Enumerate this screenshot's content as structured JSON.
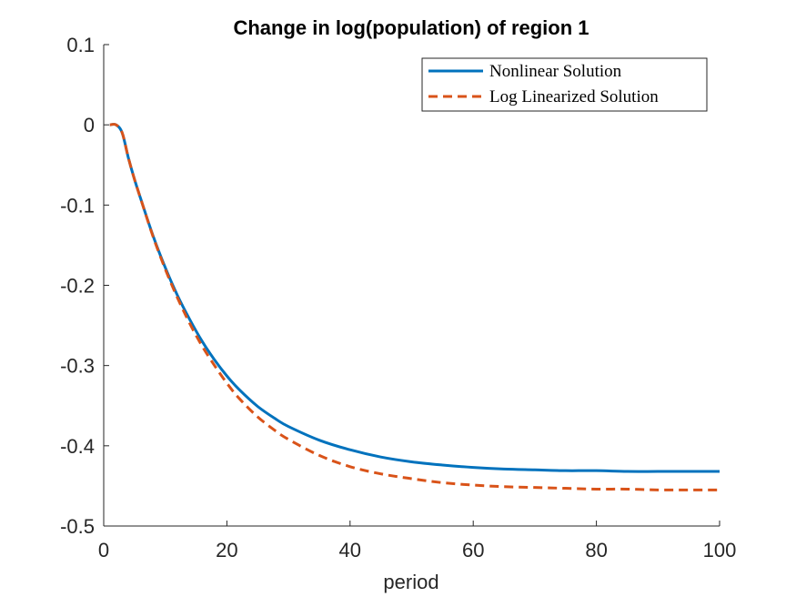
{
  "chart_data": {
    "type": "line",
    "title": "Change in log(population) of region 1",
    "xlabel": "period",
    "ylabel": "",
    "xlim": [
      0,
      100
    ],
    "ylim": [
      -0.5,
      0.1
    ],
    "xticks": [
      0,
      20,
      40,
      60,
      80,
      100
    ],
    "xtick_labels": [
      "0",
      "20",
      "40",
      "60",
      "80",
      "100"
    ],
    "yticks": [
      0.1,
      0,
      -0.1,
      -0.2,
      -0.3,
      -0.4,
      -0.5
    ],
    "ytick_labels": [
      "0.1",
      "0",
      "-0.1",
      "-0.2",
      "-0.3",
      "-0.4",
      "-0.5"
    ],
    "grid": false,
    "legend_position": "top-right",
    "series": [
      {
        "name": "Nonlinear Solution",
        "color": "#0072BD",
        "style": "solid",
        "x": [
          1,
          2,
          3,
          4,
          5,
          6,
          8,
          10,
          12,
          14,
          16,
          18,
          20,
          22,
          25,
          28,
          30,
          35,
          40,
          45,
          50,
          55,
          60,
          65,
          70,
          75,
          80,
          85,
          90,
          95,
          100
        ],
        "y": [
          0,
          0,
          -0.01,
          -0.041,
          -0.068,
          -0.092,
          -0.138,
          -0.178,
          -0.213,
          -0.243,
          -0.27,
          -0.293,
          -0.313,
          -0.33,
          -0.351,
          -0.367,
          -0.376,
          -0.393,
          -0.405,
          -0.414,
          -0.42,
          -0.424,
          -0.427,
          -0.429,
          -0.43,
          -0.431,
          -0.431,
          -0.432,
          -0.432,
          -0.432,
          -0.432
        ]
      },
      {
        "name": "Log Linearized Solution",
        "color": "#D95319",
        "style": "dashed",
        "x": [
          1,
          2,
          3,
          4,
          5,
          6,
          8,
          10,
          12,
          14,
          16,
          18,
          20,
          22,
          25,
          28,
          30,
          35,
          40,
          45,
          50,
          55,
          60,
          65,
          70,
          75,
          80,
          85,
          90,
          95,
          100
        ],
        "y": [
          0,
          0,
          -0.01,
          -0.041,
          -0.068,
          -0.092,
          -0.139,
          -0.18,
          -0.216,
          -0.248,
          -0.276,
          -0.3,
          -0.322,
          -0.341,
          -0.364,
          -0.382,
          -0.392,
          -0.412,
          -0.426,
          -0.435,
          -0.441,
          -0.446,
          -0.449,
          -0.451,
          -0.452,
          -0.453,
          -0.454,
          -0.454,
          -0.455,
          -0.455,
          -0.455
        ]
      }
    ]
  }
}
